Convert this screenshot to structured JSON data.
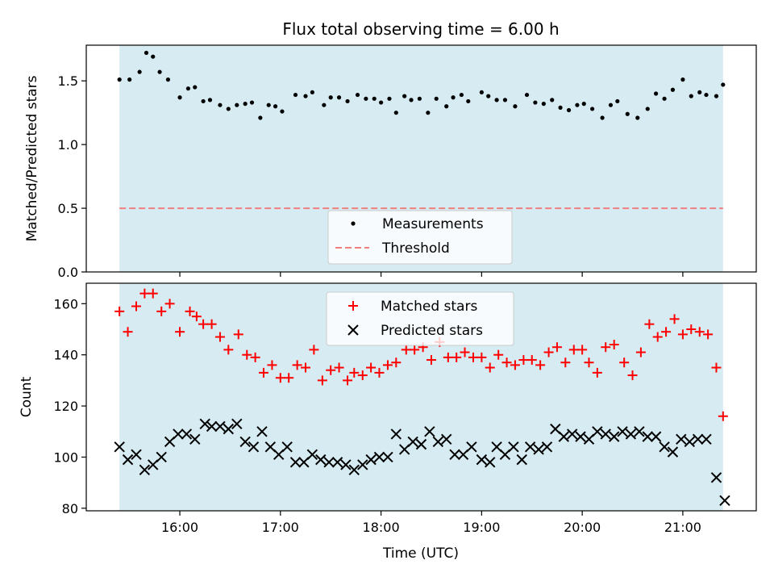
{
  "figure": {
    "title": "Flux total observing time = 6.00 h",
    "xlabel": "Time (UTC)"
  },
  "colors": {
    "span_fill": "#add8e6",
    "measurements": "#000000",
    "threshold": "#f08080",
    "matched": "#ff0000",
    "predicted": "#000000"
  },
  "chart_data": [
    {
      "type": "scatter",
      "ylabel": "Matched/Predicted stars",
      "xlim": [
        15.07,
        21.73
      ],
      "ylim": [
        0,
        1.78
      ],
      "yticks": [
        0.0,
        0.5,
        1.0,
        1.5
      ],
      "ytick_labels": [
        "0.0",
        "0.5",
        "1.0",
        "1.5"
      ],
      "grid": false,
      "legend": {
        "placement": "lower center",
        "entries": [
          "Measurements",
          "Threshold"
        ]
      },
      "observing_span": [
        15.4,
        21.4
      ],
      "threshold": 0.5,
      "series": [
        {
          "name": "Measurements",
          "marker": "dot",
          "x": [
            15.4,
            15.5,
            15.6,
            15.667,
            15.733,
            15.8,
            15.883,
            16.0,
            16.083,
            16.15,
            16.233,
            16.3,
            16.4,
            16.483,
            16.567,
            16.65,
            16.717,
            16.8,
            16.883,
            16.95,
            17.017,
            17.15,
            17.25,
            17.317,
            17.433,
            17.5,
            17.583,
            17.667,
            17.767,
            17.85,
            17.933,
            18.0,
            18.083,
            18.15,
            18.233,
            18.3,
            18.383,
            18.467,
            18.55,
            18.65,
            18.717,
            18.8,
            18.867,
            19.0,
            19.067,
            19.15,
            19.233,
            19.333,
            19.45,
            19.533,
            19.617,
            19.7,
            19.783,
            19.867,
            19.95,
            20.017,
            20.1,
            20.2,
            20.283,
            20.35,
            20.45,
            20.55,
            20.65,
            20.733,
            20.817,
            20.9,
            21.0,
            21.083,
            21.167,
            21.233,
            21.333,
            21.4
          ],
          "y": [
            1.51,
            1.51,
            1.57,
            1.72,
            1.69,
            1.57,
            1.51,
            1.37,
            1.44,
            1.45,
            1.34,
            1.35,
            1.31,
            1.28,
            1.31,
            1.32,
            1.33,
            1.21,
            1.31,
            1.3,
            1.26,
            1.39,
            1.38,
            1.41,
            1.31,
            1.37,
            1.37,
            1.34,
            1.39,
            1.36,
            1.36,
            1.33,
            1.36,
            1.25,
            1.38,
            1.35,
            1.36,
            1.25,
            1.36,
            1.3,
            1.37,
            1.39,
            1.34,
            1.41,
            1.38,
            1.35,
            1.35,
            1.3,
            1.39,
            1.33,
            1.32,
            1.35,
            1.29,
            1.27,
            1.31,
            1.32,
            1.28,
            1.21,
            1.31,
            1.34,
            1.24,
            1.21,
            1.28,
            1.4,
            1.36,
            1.43,
            1.51,
            1.38,
            1.41,
            1.39,
            1.38,
            1.47
          ]
        }
      ]
    },
    {
      "type": "scatter",
      "ylabel": "Count",
      "xlim": [
        15.07,
        21.73
      ],
      "ylim": [
        79,
        168
      ],
      "yticks": [
        80,
        100,
        120,
        140,
        160
      ],
      "ytick_labels": [
        "80",
        "100",
        "120",
        "140",
        "160"
      ],
      "xticks": [
        16,
        17,
        18,
        19,
        20,
        21
      ],
      "xtick_labels": [
        "16:00",
        "17:00",
        "18:00",
        "19:00",
        "20:00",
        "21:00"
      ],
      "grid": false,
      "legend": {
        "placement": "upper center",
        "entries": [
          "Matched stars",
          "Predicted stars"
        ]
      },
      "observing_span": [
        15.4,
        21.4
      ],
      "series": [
        {
          "name": "Matched stars",
          "marker": "plus",
          "x": [
            15.4,
            15.483,
            15.567,
            15.65,
            15.733,
            15.817,
            15.9,
            16.0,
            16.1,
            16.167,
            16.233,
            16.317,
            16.4,
            16.483,
            16.583,
            16.667,
            16.75,
            16.833,
            16.917,
            17.0,
            17.083,
            17.167,
            17.25,
            17.333,
            17.417,
            17.5,
            17.583,
            17.667,
            17.733,
            17.817,
            17.9,
            17.983,
            18.067,
            18.15,
            18.25,
            18.333,
            18.417,
            18.5,
            18.583,
            18.667,
            18.75,
            18.833,
            18.917,
            19.0,
            19.083,
            19.167,
            19.25,
            19.333,
            19.417,
            19.5,
            19.583,
            19.667,
            19.75,
            19.833,
            19.917,
            20.0,
            20.067,
            20.15,
            20.233,
            20.317,
            20.417,
            20.5,
            20.583,
            20.667,
            20.75,
            20.833,
            20.917,
            21.0,
            21.083,
            21.167,
            21.25,
            21.333,
            21.4
          ],
          "y": [
            157,
            149,
            159,
            164,
            164,
            157,
            160,
            149,
            157,
            155,
            152,
            152,
            147,
            142,
            148,
            140,
            139,
            133,
            136,
            131,
            131,
            136,
            135,
            142,
            130,
            134,
            135,
            130,
            133,
            132,
            135,
            133,
            136,
            137,
            142,
            142,
            143,
            138,
            145,
            139,
            139,
            141,
            139,
            139,
            135,
            140,
            137,
            136,
            138,
            138,
            136,
            141,
            143,
            137,
            142,
            142,
            137,
            133,
            143,
            144,
            137,
            132,
            141,
            152,
            147,
            149,
            154,
            148,
            150,
            149,
            148,
            135,
            116
          ]
        },
        {
          "name": "Predicted stars",
          "marker": "x",
          "x": [
            15.4,
            15.483,
            15.567,
            15.65,
            15.733,
            15.817,
            15.9,
            15.983,
            16.067,
            16.15,
            16.25,
            16.317,
            16.4,
            16.483,
            16.567,
            16.65,
            16.733,
            16.817,
            16.9,
            16.983,
            17.067,
            17.15,
            17.233,
            17.317,
            17.4,
            17.483,
            17.567,
            17.65,
            17.733,
            17.817,
            17.9,
            17.983,
            18.067,
            18.15,
            18.233,
            18.317,
            18.4,
            18.483,
            18.567,
            18.65,
            18.733,
            18.817,
            18.9,
            19.0,
            19.083,
            19.15,
            19.233,
            19.317,
            19.4,
            19.483,
            19.567,
            19.65,
            19.733,
            19.817,
            19.9,
            19.983,
            20.067,
            20.15,
            20.233,
            20.317,
            20.4,
            20.483,
            20.567,
            20.65,
            20.733,
            20.817,
            20.9,
            20.983,
            21.067,
            21.15,
            21.233,
            21.333,
            21.417
          ],
          "y": [
            104,
            99,
            101,
            95,
            97,
            100,
            106,
            109,
            109,
            107,
            113,
            112,
            112,
            111,
            113,
            106,
            104,
            110,
            104,
            101,
            104,
            98,
            98,
            101,
            99,
            98,
            98,
            97,
            95,
            97,
            99,
            100,
            100,
            109,
            103,
            106,
            105,
            110,
            106,
            107,
            101,
            101,
            104,
            99,
            98,
            104,
            101,
            104,
            99,
            104,
            103,
            104,
            111,
            108,
            109,
            108,
            107,
            110,
            109,
            108,
            110,
            109,
            110,
            108,
            108,
            104,
            102,
            107,
            106,
            107,
            107,
            92,
            83
          ]
        }
      ]
    }
  ]
}
